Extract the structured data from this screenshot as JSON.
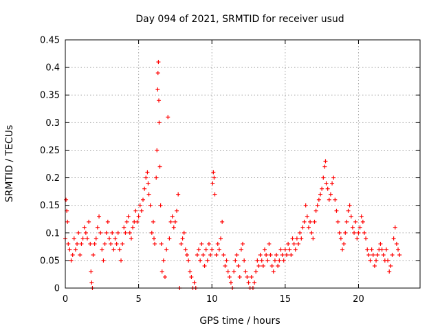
{
  "chart_data": {
    "type": "scatter",
    "title": "Day 094 of 2021, SRMTID for receiver usud",
    "xlabel": "GPS time / hours",
    "ylabel": "SRMTID / TECUs",
    "xlim": [
      0,
      24.2
    ],
    "ylim": [
      0,
      0.45
    ],
    "xticks": [
      0,
      5,
      10,
      15,
      20
    ],
    "xtick_labels": [
      "0",
      "5",
      "10",
      "15",
      "20"
    ],
    "yticks": [
      0,
      0.05,
      0.1,
      0.15,
      0.2,
      0.25,
      0.3,
      0.35,
      0.4,
      0.45
    ],
    "ytick_labels": [
      "0",
      "0.05",
      "0.1",
      "0.15",
      "0.2",
      "0.25",
      "0.3",
      "0.35",
      "0.4",
      "0.45"
    ],
    "grid": true,
    "marker": "+",
    "color": "#ff0000",
    "series": [
      {
        "name": "SRMTID",
        "points": [
          [
            0.0,
            0.09
          ],
          [
            0.05,
            0.16
          ],
          [
            0.1,
            0.14
          ],
          [
            0.15,
            0.12
          ],
          [
            0.2,
            0.08
          ],
          [
            0.3,
            0.07
          ],
          [
            0.4,
            0.05
          ],
          [
            0.5,
            0.06
          ],
          [
            0.6,
            0.09
          ],
          [
            0.7,
            0.07
          ],
          [
            0.8,
            0.08
          ],
          [
            0.9,
            0.1
          ],
          [
            1.0,
            0.06
          ],
          [
            1.1,
            0.08
          ],
          [
            1.2,
            0.09
          ],
          [
            1.3,
            0.11
          ],
          [
            1.4,
            0.1
          ],
          [
            1.5,
            0.09
          ],
          [
            1.6,
            0.12
          ],
          [
            1.7,
            0.08
          ],
          [
            1.75,
            0.03
          ],
          [
            1.8,
            0.01
          ],
          [
            1.85,
            0.0
          ],
          [
            1.9,
            0.06
          ],
          [
            2.0,
            0.08
          ],
          [
            2.1,
            0.09
          ],
          [
            2.2,
            0.11
          ],
          [
            2.3,
            0.13
          ],
          [
            2.4,
            0.1
          ],
          [
            2.5,
            0.07
          ],
          [
            2.6,
            0.05
          ],
          [
            2.7,
            0.08
          ],
          [
            2.8,
            0.1
          ],
          [
            2.9,
            0.12
          ],
          [
            3.0,
            0.09
          ],
          [
            3.1,
            0.08
          ],
          [
            3.2,
            0.1
          ],
          [
            3.3,
            0.07
          ],
          [
            3.4,
            0.09
          ],
          [
            3.5,
            0.08
          ],
          [
            3.6,
            0.1
          ],
          [
            3.7,
            0.07
          ],
          [
            3.8,
            0.05
          ],
          [
            3.9,
            0.08
          ],
          [
            4.0,
            0.11
          ],
          [
            4.1,
            0.1
          ],
          [
            4.2,
            0.12
          ],
          [
            4.3,
            0.13
          ],
          [
            4.4,
            0.1
          ],
          [
            4.5,
            0.09
          ],
          [
            4.6,
            0.11
          ],
          [
            4.7,
            0.12
          ],
          [
            4.8,
            0.14
          ],
          [
            4.9,
            0.12
          ],
          [
            5.0,
            0.13
          ],
          [
            5.1,
            0.15
          ],
          [
            5.2,
            0.14
          ],
          [
            5.3,
            0.16
          ],
          [
            5.4,
            0.18
          ],
          [
            5.5,
            0.2
          ],
          [
            5.6,
            0.21
          ],
          [
            5.65,
            0.19
          ],
          [
            5.7,
            0.17
          ],
          [
            5.8,
            0.15
          ],
          [
            5.9,
            0.1
          ],
          [
            6.0,
            0.12
          ],
          [
            6.05,
            0.09
          ],
          [
            6.1,
            0.08
          ],
          [
            6.2,
            0.2
          ],
          [
            6.25,
            0.25
          ],
          [
            6.3,
            0.36
          ],
          [
            6.32,
            0.39
          ],
          [
            6.35,
            0.41
          ],
          [
            6.38,
            0.34
          ],
          [
            6.4,
            0.3
          ],
          [
            6.45,
            0.22
          ],
          [
            6.5,
            0.15
          ],
          [
            6.55,
            0.08
          ],
          [
            6.6,
            0.03
          ],
          [
            6.7,
            0.05
          ],
          [
            6.8,
            0.02
          ],
          [
            6.9,
            0.07
          ],
          [
            7.0,
            0.31
          ],
          [
            7.1,
            0.09
          ],
          [
            7.2,
            0.12
          ],
          [
            7.3,
            0.13
          ],
          [
            7.4,
            0.11
          ],
          [
            7.5,
            0.12
          ],
          [
            7.6,
            0.14
          ],
          [
            7.7,
            0.17
          ],
          [
            7.8,
            0.0
          ],
          [
            7.9,
            0.08
          ],
          [
            8.0,
            0.09
          ],
          [
            8.1,
            0.1
          ],
          [
            8.2,
            0.07
          ],
          [
            8.3,
            0.06
          ],
          [
            8.4,
            0.05
          ],
          [
            8.5,
            0.03
          ],
          [
            8.6,
            0.02
          ],
          [
            8.7,
            0.0
          ],
          [
            8.8,
            0.01
          ],
          [
            8.9,
            0.0
          ],
          [
            9.0,
            0.06
          ],
          [
            9.1,
            0.07
          ],
          [
            9.2,
            0.05
          ],
          [
            9.3,
            0.08
          ],
          [
            9.4,
            0.06
          ],
          [
            9.5,
            0.04
          ],
          [
            9.6,
            0.07
          ],
          [
            9.7,
            0.05
          ],
          [
            9.8,
            0.08
          ],
          [
            9.9,
            0.06
          ],
          [
            10.0,
            0.07
          ],
          [
            10.05,
            0.19
          ],
          [
            10.1,
            0.21
          ],
          [
            10.15,
            0.2
          ],
          [
            10.2,
            0.17
          ],
          [
            10.3,
            0.06
          ],
          [
            10.4,
            0.08
          ],
          [
            10.5,
            0.07
          ],
          [
            10.6,
            0.09
          ],
          [
            10.7,
            0.12
          ],
          [
            10.8,
            0.06
          ],
          [
            10.9,
            0.04
          ],
          [
            11.0,
            0.05
          ],
          [
            11.1,
            0.03
          ],
          [
            11.2,
            0.02
          ],
          [
            11.3,
            0.01
          ],
          [
            11.4,
            0.0
          ],
          [
            11.5,
            0.03
          ],
          [
            11.6,
            0.05
          ],
          [
            11.7,
            0.06
          ],
          [
            11.8,
            0.04
          ],
          [
            11.9,
            0.02
          ],
          [
            12.0,
            0.07
          ],
          [
            12.1,
            0.08
          ],
          [
            12.2,
            0.05
          ],
          [
            12.3,
            0.03
          ],
          [
            12.4,
            0.02
          ],
          [
            12.5,
            0.01
          ],
          [
            12.6,
            0.0
          ],
          [
            12.7,
            0.02
          ],
          [
            12.8,
            0.0
          ],
          [
            12.9,
            0.01
          ],
          [
            13.0,
            0.03
          ],
          [
            13.1,
            0.05
          ],
          [
            13.2,
            0.04
          ],
          [
            13.3,
            0.06
          ],
          [
            13.4,
            0.05
          ],
          [
            13.5,
            0.04
          ],
          [
            13.6,
            0.07
          ],
          [
            13.7,
            0.06
          ],
          [
            13.8,
            0.05
          ],
          [
            13.9,
            0.08
          ],
          [
            14.0,
            0.06
          ],
          [
            14.1,
            0.04
          ],
          [
            14.2,
            0.03
          ],
          [
            14.3,
            0.05
          ],
          [
            14.4,
            0.06
          ],
          [
            14.5,
            0.04
          ],
          [
            14.6,
            0.05
          ],
          [
            14.7,
            0.07
          ],
          [
            14.8,
            0.06
          ],
          [
            14.9,
            0.05
          ],
          [
            15.0,
            0.07
          ],
          [
            15.1,
            0.06
          ],
          [
            15.2,
            0.08
          ],
          [
            15.3,
            0.07
          ],
          [
            15.4,
            0.06
          ],
          [
            15.5,
            0.09
          ],
          [
            15.6,
            0.08
          ],
          [
            15.7,
            0.07
          ],
          [
            15.8,
            0.09
          ],
          [
            15.9,
            0.08
          ],
          [
            16.0,
            0.1
          ],
          [
            16.1,
            0.09
          ],
          [
            16.2,
            0.11
          ],
          [
            16.3,
            0.12
          ],
          [
            16.4,
            0.15
          ],
          [
            16.5,
            0.13
          ],
          [
            16.6,
            0.11
          ],
          [
            16.7,
            0.12
          ],
          [
            16.8,
            0.1
          ],
          [
            16.9,
            0.09
          ],
          [
            17.0,
            0.12
          ],
          [
            17.1,
            0.14
          ],
          [
            17.2,
            0.15
          ],
          [
            17.3,
            0.16
          ],
          [
            17.4,
            0.17
          ],
          [
            17.5,
            0.18
          ],
          [
            17.6,
            0.2
          ],
          [
            17.7,
            0.22
          ],
          [
            17.75,
            0.23
          ],
          [
            17.8,
            0.19
          ],
          [
            17.9,
            0.18
          ],
          [
            18.0,
            0.16
          ],
          [
            18.1,
            0.17
          ],
          [
            18.2,
            0.19
          ],
          [
            18.3,
            0.2
          ],
          [
            18.4,
            0.16
          ],
          [
            18.5,
            0.14
          ],
          [
            18.6,
            0.12
          ],
          [
            18.7,
            0.1
          ],
          [
            18.8,
            0.09
          ],
          [
            18.9,
            0.07
          ],
          [
            19.0,
            0.08
          ],
          [
            19.1,
            0.1
          ],
          [
            19.2,
            0.12
          ],
          [
            19.3,
            0.14
          ],
          [
            19.4,
            0.15
          ],
          [
            19.5,
            0.13
          ],
          [
            19.6,
            0.11
          ],
          [
            19.7,
            0.1
          ],
          [
            19.8,
            0.12
          ],
          [
            19.9,
            0.09
          ],
          [
            20.0,
            0.1
          ],
          [
            20.1,
            0.11
          ],
          [
            20.2,
            0.13
          ],
          [
            20.3,
            0.12
          ],
          [
            20.4,
            0.1
          ],
          [
            20.5,
            0.09
          ],
          [
            20.6,
            0.07
          ],
          [
            20.7,
            0.06
          ],
          [
            20.8,
            0.05
          ],
          [
            20.9,
            0.07
          ],
          [
            21.0,
            0.06
          ],
          [
            21.1,
            0.04
          ],
          [
            21.2,
            0.05
          ],
          [
            21.3,
            0.06
          ],
          [
            21.4,
            0.07
          ],
          [
            21.5,
            0.08
          ],
          [
            21.6,
            0.07
          ],
          [
            21.7,
            0.06
          ],
          [
            21.8,
            0.05
          ],
          [
            21.9,
            0.07
          ],
          [
            22.0,
            0.05
          ],
          [
            22.1,
            0.03
          ],
          [
            22.2,
            0.04
          ],
          [
            22.3,
            0.06
          ],
          [
            22.4,
            0.09
          ],
          [
            22.5,
            0.11
          ],
          [
            22.6,
            0.08
          ],
          [
            22.7,
            0.07
          ],
          [
            22.8,
            0.06
          ]
        ]
      }
    ]
  }
}
